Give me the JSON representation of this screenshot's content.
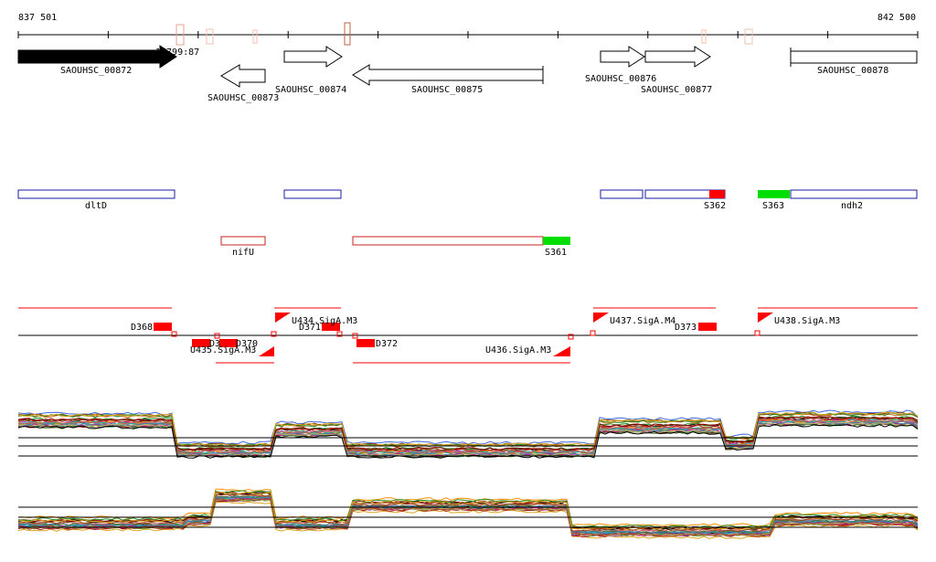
{
  "coords": {
    "start": "837 501",
    "end": "842 500"
  },
  "position_label": "17799:87",
  "genes": [
    {
      "name": "SAOUHSC_00872",
      "strand": "+",
      "filled": true
    },
    {
      "name": "SAOUHSC_00873",
      "strand": "-",
      "filled": false
    },
    {
      "name": "SAOUHSC_00874",
      "strand": "+",
      "filled": false
    },
    {
      "name": "SAOUHSC_00875",
      "strand": "-",
      "filled": false
    },
    {
      "name": "SAOUHSC_00876",
      "strand": "+",
      "filled": false
    },
    {
      "name": "SAOUHSC_00877",
      "strand": "+",
      "filled": false
    },
    {
      "name": "SAOUHSC_00878",
      "strand": "+",
      "filled": false
    }
  ],
  "operons_plus": [
    "dltD",
    "",
    "",
    "",
    "ndh2"
  ],
  "operons_minus": [
    "nifU",
    ""
  ],
  "srnas": [
    {
      "name": "S362",
      "color": "#ff0000"
    },
    {
      "name": "S363",
      "color": "#00dd00"
    },
    {
      "name": "S361",
      "color": "#00dd00"
    }
  ],
  "upshifts": [
    "U434.SigA.M3",
    "U435.SigA.M3",
    "U436.SigA.M3",
    "U437.SigA.M4",
    "U438.SigA.M3"
  ],
  "downshifts": [
    "D368",
    "D3",
    "D370",
    "D371",
    "D372",
    "D373"
  ],
  "colors": {
    "plus_operon": "#1a1aa0",
    "minus_operon": "#cc2222",
    "marker": "#ff0000",
    "srna_green": "#00dd00"
  }
}
